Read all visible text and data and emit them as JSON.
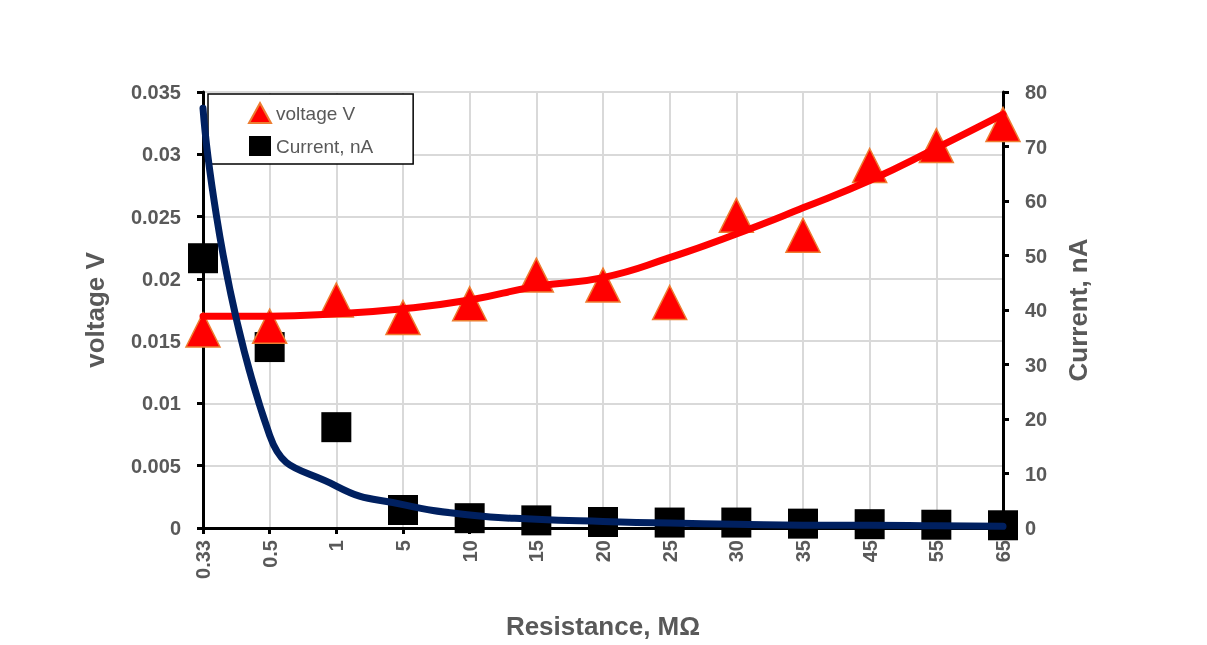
{
  "chart_data": {
    "type": "scatter",
    "xlabel": "Resistance, MΩ",
    "ylabel": "voltage V",
    "y2label": "Current, nA",
    "categories": [
      "0.33",
      "0.5",
      "1",
      "5",
      "10",
      "15",
      "20",
      "25",
      "30",
      "35",
      "45",
      "55",
      "65"
    ],
    "ylim": [
      0,
      0.035
    ],
    "yticks": [
      0,
      0.005,
      0.01,
      0.015,
      0.02,
      0.025,
      0.03,
      0.035
    ],
    "y2lim": [
      0,
      80
    ],
    "y2ticks": [
      0,
      10,
      20,
      30,
      40,
      50,
      60,
      70,
      80
    ],
    "grid": true,
    "legend": "top left",
    "series": [
      {
        "name": "voltage V",
        "marker": "triangle",
        "color": "#ff0000",
        "values": [
          0.0159,
          0.0162,
          0.0183,
          0.0169,
          0.018,
          0.0203,
          0.0195,
          0.0181,
          0.0251,
          0.0235,
          0.0291,
          0.0307,
          0.0324
        ]
      },
      {
        "name": "Current, nA",
        "marker": "square",
        "axis": "y2",
        "color": "#000000",
        "values": [
          49.5,
          33.2,
          18.5,
          3.3,
          1.8,
          1.4,
          1.1,
          1.0,
          1.0,
          0.8,
          0.7,
          0.6,
          0.5
        ]
      },
      {
        "type": "line",
        "marker": "none",
        "color": "#ff0000",
        "values": [
          0.017,
          0.017,
          0.0172,
          0.0176,
          0.0183,
          0.0194,
          0.0201,
          0.0217,
          0.0236,
          0.0257,
          0.0279,
          0.0305,
          0.0332
        ]
      },
      {
        "type": "line",
        "marker": "none",
        "axis": "y2",
        "color": "#002060",
        "values": [
          77,
          17,
          7.7,
          4.3,
          2.4,
          1.6,
          1.2,
          0.9,
          0.7,
          0.5,
          0.5,
          0.4,
          0.3
        ]
      }
    ]
  }
}
